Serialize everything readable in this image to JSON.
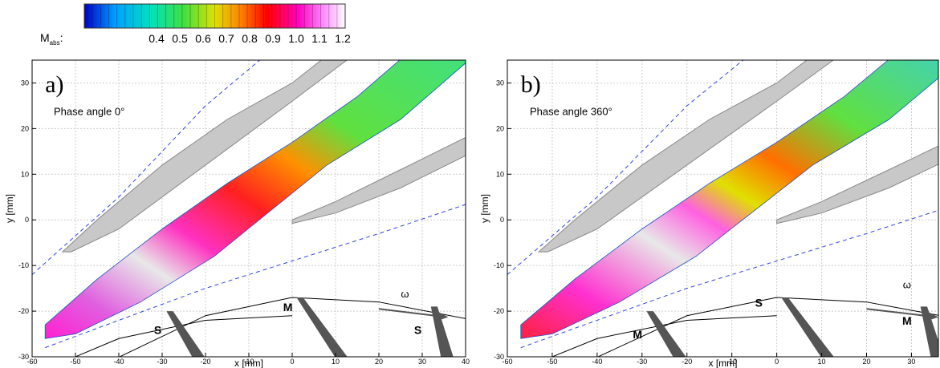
{
  "colorbar": {
    "label": "M",
    "label_subscript": "abs",
    "separator": ":",
    "ticks": [
      0.4,
      0.5,
      0.6,
      0.7,
      0.8,
      0.9,
      {
        "value": 1,
        "label": "1.0"
      },
      1.1,
      1.2
    ]
  },
  "chart_data": [
    {
      "type": "contour",
      "panel_label": "a)",
      "xlabel": "x [mm]",
      "ylabel": "y [mm]",
      "xlim": [
        -60,
        40
      ],
      "ylim": [
        -30,
        35
      ],
      "xticks": [
        -60,
        -50,
        -40,
        -30,
        -20,
        -10,
        0,
        10,
        20,
        30,
        40
      ],
      "yticks": [
        -30,
        -20,
        -10,
        0,
        10,
        20,
        30
      ],
      "grid": true,
      "annotations": [
        "Phase angle  0°",
        "S",
        "M",
        "S",
        "ω"
      ]
    },
    {
      "type": "contour",
      "panel_label": "b)",
      "xlabel": "x [mm]",
      "ylabel": "y [mm]",
      "xlim": [
        -60,
        36
      ],
      "ylim": [
        -30,
        35
      ],
      "xticks": [
        -60,
        -50,
        -40,
        -30,
        -20,
        -10,
        0,
        10,
        20,
        30
      ],
      "yticks": [
        -30,
        -20,
        -10,
        0,
        10,
        20,
        30
      ],
      "grid": true,
      "annotations": [
        "Phase angle 360°",
        "M",
        "S",
        "M",
        "ω"
      ]
    }
  ]
}
